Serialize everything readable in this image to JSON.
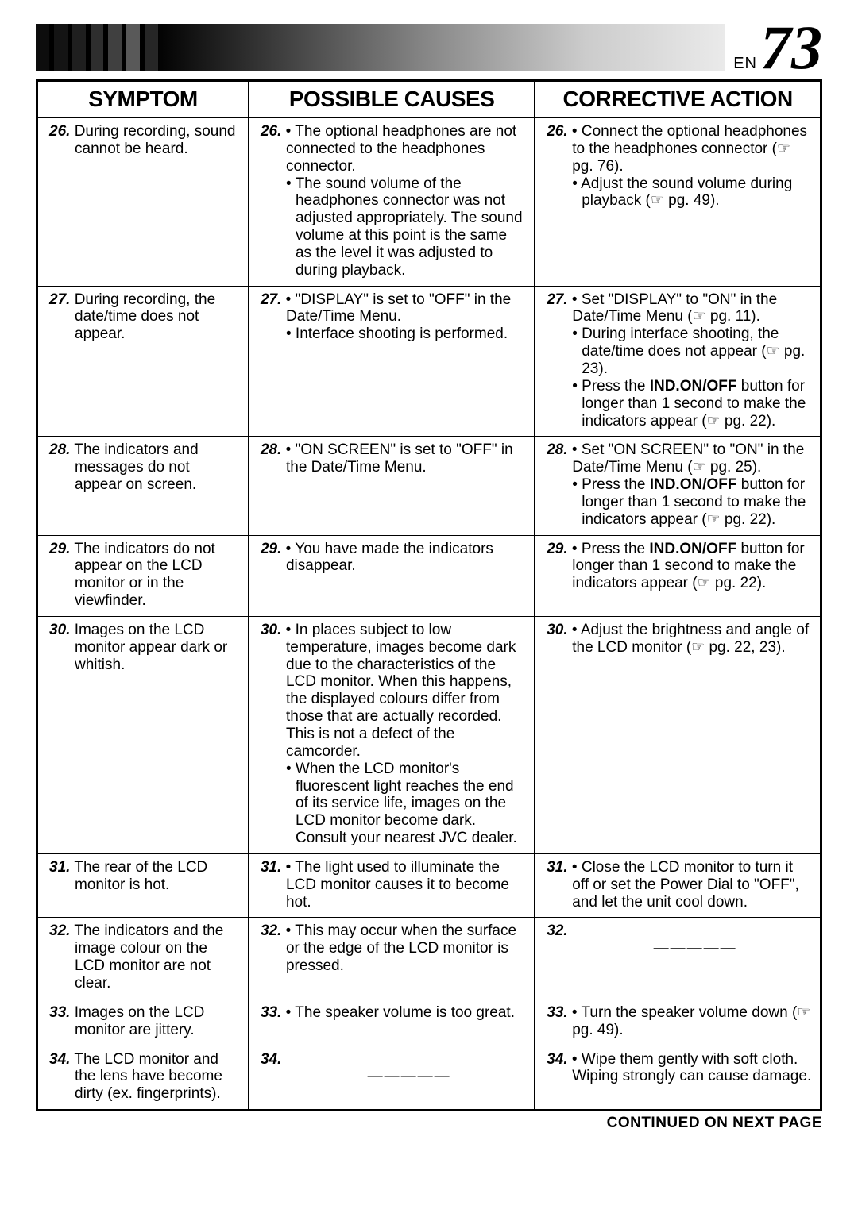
{
  "page": {
    "en_prefix": "EN",
    "number": "73"
  },
  "headers": {
    "symptom": "SYMPTOM",
    "causes": "POSSIBLE CAUSES",
    "action": "CORRECTIVE ACTION"
  },
  "rows": [
    {
      "n": "26.",
      "symptom": "During recording, sound cannot be heard.",
      "causes_n": "26.",
      "causes": [
        "The optional headphones are not connected to the head­phones connector.",
        "The sound volume of the headphones connector was not adjusted appropriately. The sound volume at this point is the same as the level it was adjusted to during playback."
      ],
      "action_n": "26.",
      "actions": [
        "Connect the optional headphones to the head­phones connector (☞ pg. 76).",
        "Adjust the sound volume during playback (☞ pg. 49)."
      ]
    },
    {
      "n": "27.",
      "symptom": "During recording, the date/time does not appear.",
      "causes_n": "27.",
      "causes": [
        "\"DISPLAY\" is set to \"OFF\" in the Date/Time Menu.",
        "Interface shooting is performed."
      ],
      "action_n": "27.",
      "actions": [
        "Set \"DISPLAY\" to \"ON\" in the Date/Time Menu (☞ pg. 11).",
        "During interface shooting, the date/time does not appear (☞ pg. 23).",
        "Press the <b>IND.ON/OFF</b> button for longer than 1 second to make the indicators appear (☞ pg. 22)."
      ]
    },
    {
      "n": "28.",
      "symptom": "The indicators and messages do not appear on screen.",
      "causes_n": "28.",
      "causes": [
        "\"ON SCREEN\" is set to \"OFF\" in the Date/Time Menu."
      ],
      "action_n": "28.",
      "actions": [
        "Set \"ON SCREEN\" to \"ON\" in the Date/Time Menu (☞ pg. 25).",
        "Press the <b>IND.ON/OFF</b> button for longer than 1 second to make the indicators appear (☞ pg. 22)."
      ]
    },
    {
      "n": "29.",
      "symptom": "The indicators do not appear on the LCD monitor or in the viewfinder.",
      "causes_n": "29.",
      "causes": [
        "You have made the indica­tors disappear."
      ],
      "action_n": "29.",
      "actions": [
        "Press the <b>IND.ON/OFF</b> button for longer than 1 second to make the indicators appear (☞ pg. 22)."
      ]
    },
    {
      "n": "30.",
      "symptom": "Images on the LCD monitor appear dark or whitish.",
      "causes_n": "30.",
      "causes": [
        "In places subject to low temperature, images become dark due to the characteristics of the LCD monitor. When this happens, the displayed colours differ from those that are actually recorded. This is not a defect of the camcorder.",
        "When the LCD monitor's fluorescent light reaches the end of its service life, images on the LCD monitor become dark. Consult your nearest JVC dealer."
      ],
      "action_n": "30.",
      "actions": [
        "Adjust the brightness and angle of the LCD monitor (☞ pg. 22, 23)."
      ]
    },
    {
      "n": "31.",
      "symptom": "The rear of the LCD monitor is hot.",
      "causes_n": "31.",
      "causes": [
        "The light used to illuminate the LCD monitor causes it to become hot."
      ],
      "action_n": "31.",
      "actions": [
        "Close the LCD monitor to turn it off or set the Power Dial to \"OFF\", and let the unit cool down."
      ]
    },
    {
      "n": "32.",
      "symptom": "The indicators and the image colour on the LCD monitor are not clear.",
      "causes_n": "32.",
      "causes": [
        "This may occur when the surface or the edge of the LCD monitor is pressed."
      ],
      "action_n": "32.",
      "actions": null,
      "action_blank": "—————"
    },
    {
      "n": "33.",
      "symptom": "Images on the LCD monitor are jittery.",
      "causes_n": "33.",
      "causes": [
        "The speaker volume is too great."
      ],
      "action_n": "33.",
      "actions": [
        "Turn the speaker volume down (☞ pg. 49)."
      ]
    },
    {
      "n": "34.",
      "symptom": "The LCD monitor and the lens have become dirty (ex. fingerprints).",
      "causes_n": "34.",
      "causes": null,
      "causes_blank": "—————",
      "action_n": "34.",
      "actions": [
        "Wipe them gently with soft cloth. Wiping strongly can cause damage."
      ]
    }
  ],
  "footer": "CONTINUED ON NEXT PAGE"
}
